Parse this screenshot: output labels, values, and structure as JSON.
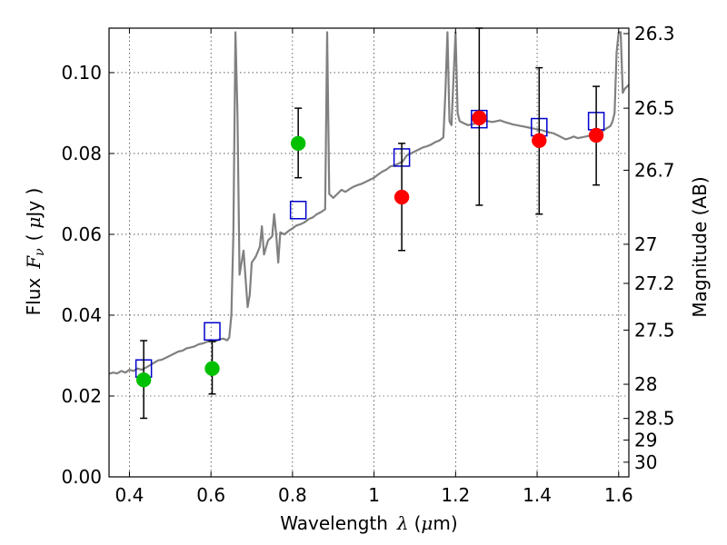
{
  "chart_data": {
    "type": "scatter",
    "title": "",
    "xlabel": {
      "prefix": "Wavelength",
      "symbol": "λ",
      "unit_open": "(",
      "unit_symbol": "μ",
      "unit": "m)"
    },
    "ylabel": {
      "prefix": "Flux",
      "symbol": "F",
      "subscript": "ν",
      "unit_open": "(",
      "unit_symbol": "μ",
      "unit": "Jy )"
    },
    "y2label": "Magnitude (AB)",
    "xlim": [
      0.35,
      1.625
    ],
    "ylim": [
      0.0,
      0.111
    ],
    "grid": true,
    "xticks": [
      {
        "value": 0.4,
        "label": "0.4"
      },
      {
        "value": 0.6,
        "label": "0.6"
      },
      {
        "value": 0.8,
        "label": "0.8"
      },
      {
        "value": 1.0,
        "label": "1"
      },
      {
        "value": 1.2,
        "label": "1.2"
      },
      {
        "value": 1.4,
        "label": "1.4"
      },
      {
        "value": 1.6,
        "label": "1.6"
      }
    ],
    "yticks": [
      {
        "value": 0.0,
        "label": "0.00"
      },
      {
        "value": 0.02,
        "label": "0.02"
      },
      {
        "value": 0.04,
        "label": "0.04"
      },
      {
        "value": 0.06,
        "label": "0.06"
      },
      {
        "value": 0.08,
        "label": "0.08"
      },
      {
        "value": 0.1,
        "label": "0.10"
      }
    ],
    "y2ticks": [
      {
        "mag": 26.3,
        "label": "26.3"
      },
      {
        "mag": 26.5,
        "label": "26.5"
      },
      {
        "mag": 26.7,
        "label": "26.7"
      },
      {
        "mag": 27.0,
        "label": "27"
      },
      {
        "mag": 27.2,
        "label": "27.2"
      },
      {
        "mag": 27.5,
        "label": "27.5"
      },
      {
        "mag": 28.0,
        "label": "28"
      },
      {
        "mag": 28.5,
        "label": "28.5"
      },
      {
        "mag": 29.0,
        "label": "29"
      },
      {
        "mag": 30.0,
        "label": "30"
      }
    ],
    "colors": {
      "spectrum": "#808080",
      "model_box": "#0000cc",
      "green_points": "#00c000",
      "red_points": "#ff0000",
      "errorbar": "#000000"
    },
    "spectrum": [
      [
        0.35,
        0.0255
      ],
      [
        0.36,
        0.0258
      ],
      [
        0.37,
        0.0256
      ],
      [
        0.38,
        0.0262
      ],
      [
        0.39,
        0.0258
      ],
      [
        0.4,
        0.0265
      ],
      [
        0.41,
        0.0262
      ],
      [
        0.42,
        0.0268
      ],
      [
        0.43,
        0.0265
      ],
      [
        0.44,
        0.027
      ],
      [
        0.45,
        0.0276
      ],
      [
        0.46,
        0.0282
      ],
      [
        0.47,
        0.0288
      ],
      [
        0.48,
        0.029
      ],
      [
        0.49,
        0.0295
      ],
      [
        0.5,
        0.03
      ],
      [
        0.51,
        0.0305
      ],
      [
        0.52,
        0.031
      ],
      [
        0.53,
        0.0312
      ],
      [
        0.54,
        0.0318
      ],
      [
        0.55,
        0.032
      ],
      [
        0.56,
        0.0323
      ],
      [
        0.57,
        0.0328
      ],
      [
        0.58,
        0.033
      ],
      [
        0.59,
        0.0334
      ],
      [
        0.6,
        0.0338
      ],
      [
        0.61,
        0.0335
      ],
      [
        0.62,
        0.034
      ],
      [
        0.63,
        0.0342
      ],
      [
        0.64,
        0.0338
      ],
      [
        0.645,
        0.0345
      ],
      [
        0.65,
        0.04
      ],
      [
        0.655,
        0.06
      ],
      [
        0.66,
        0.11
      ],
      [
        0.665,
        0.09
      ],
      [
        0.67,
        0.05
      ],
      [
        0.68,
        0.056
      ],
      [
        0.69,
        0.042
      ],
      [
        0.695,
        0.045
      ],
      [
        0.7,
        0.053
      ],
      [
        0.71,
        0.0545
      ],
      [
        0.72,
        0.057
      ],
      [
        0.725,
        0.062
      ],
      [
        0.73,
        0.055
      ],
      [
        0.74,
        0.0585
      ],
      [
        0.75,
        0.0595
      ],
      [
        0.755,
        0.065
      ],
      [
        0.76,
        0.06
      ],
      [
        0.765,
        0.053
      ],
      [
        0.77,
        0.0605
      ],
      [
        0.78,
        0.06
      ],
      [
        0.79,
        0.0608
      ],
      [
        0.8,
        0.0615
      ],
      [
        0.81,
        0.0622
      ],
      [
        0.82,
        0.0625
      ],
      [
        0.83,
        0.063
      ],
      [
        0.84,
        0.0638
      ],
      [
        0.85,
        0.0642
      ],
      [
        0.86,
        0.065
      ],
      [
        0.87,
        0.0655
      ],
      [
        0.88,
        0.0662
      ],
      [
        0.885,
        0.11
      ],
      [
        0.89,
        0.07
      ],
      [
        0.9,
        0.069
      ],
      [
        0.91,
        0.07
      ],
      [
        0.92,
        0.071
      ],
      [
        0.93,
        0.0705
      ],
      [
        0.94,
        0.0712
      ],
      [
        0.95,
        0.0718
      ],
      [
        0.96,
        0.0722
      ],
      [
        0.97,
        0.0725
      ],
      [
        0.98,
        0.073
      ],
      [
        0.99,
        0.0735
      ],
      [
        1.0,
        0.074
      ],
      [
        1.01,
        0.0748
      ],
      [
        1.02,
        0.0755
      ],
      [
        1.03,
        0.076
      ],
      [
        1.04,
        0.0768
      ],
      [
        1.05,
        0.077
      ],
      [
        1.06,
        0.0775
      ],
      [
        1.07,
        0.078
      ],
      [
        1.08,
        0.0795
      ],
      [
        1.09,
        0.08
      ],
      [
        1.1,
        0.0805
      ],
      [
        1.11,
        0.081
      ],
      [
        1.12,
        0.0815
      ],
      [
        1.13,
        0.0818
      ],
      [
        1.14,
        0.0822
      ],
      [
        1.15,
        0.0828
      ],
      [
        1.16,
        0.0832
      ],
      [
        1.17,
        0.084
      ],
      [
        1.175,
        0.095
      ],
      [
        1.18,
        0.11
      ],
      [
        1.185,
        0.088
      ],
      [
        1.19,
        0.087
      ],
      [
        1.2,
        0.11
      ],
      [
        1.205,
        0.09
      ],
      [
        1.21,
        0.088
      ],
      [
        1.22,
        0.0875
      ],
      [
        1.23,
        0.087
      ],
      [
        1.24,
        0.0872
      ],
      [
        1.25,
        0.0875
      ],
      [
        1.26,
        0.0878
      ],
      [
        1.27,
        0.088
      ],
      [
        1.28,
        0.088
      ],
      [
        1.29,
        0.0878
      ],
      [
        1.3,
        0.088
      ],
      [
        1.31,
        0.0882
      ],
      [
        1.32,
        0.0878
      ],
      [
        1.33,
        0.0875
      ],
      [
        1.34,
        0.0872
      ],
      [
        1.35,
        0.087
      ],
      [
        1.36,
        0.0868
      ],
      [
        1.37,
        0.0866
      ],
      [
        1.38,
        0.0864
      ],
      [
        1.39,
        0.0862
      ],
      [
        1.4,
        0.086
      ],
      [
        1.41,
        0.0858
      ],
      [
        1.42,
        0.0855
      ],
      [
        1.43,
        0.0852
      ],
      [
        1.44,
        0.085
      ],
      [
        1.45,
        0.0845
      ],
      [
        1.46,
        0.084
      ],
      [
        1.47,
        0.0835
      ],
      [
        1.48,
        0.0838
      ],
      [
        1.49,
        0.0842
      ],
      [
        1.5,
        0.0838
      ],
      [
        1.51,
        0.084
      ],
      [
        1.52,
        0.0842
      ],
      [
        1.53,
        0.0845
      ],
      [
        1.54,
        0.0848
      ],
      [
        1.55,
        0.085
      ],
      [
        1.56,
        0.0855
      ],
      [
        1.57,
        0.0862
      ],
      [
        1.58,
        0.0868
      ],
      [
        1.585,
        0.088
      ],
      [
        1.59,
        0.09
      ],
      [
        1.595,
        0.105
      ],
      [
        1.6,
        0.11
      ],
      [
        1.605,
        0.11
      ],
      [
        1.61,
        0.095
      ],
      [
        1.615,
        0.096
      ],
      [
        1.62,
        0.0965
      ],
      [
        1.625,
        0.097
      ]
    ],
    "model_points": [
      {
        "x": 0.435,
        "y": 0.0268
      },
      {
        "x": 0.603,
        "y": 0.036
      },
      {
        "x": 0.814,
        "y": 0.066
      },
      {
        "x": 1.068,
        "y": 0.079
      },
      {
        "x": 1.258,
        "y": 0.0885
      },
      {
        "x": 1.405,
        "y": 0.0865
      },
      {
        "x": 1.545,
        "y": 0.088
      }
    ],
    "green_points": [
      {
        "x": 0.435,
        "y": 0.024,
        "yerr_low": 0.0145,
        "yerr_high": 0.0337
      },
      {
        "x": 0.603,
        "y": 0.0268,
        "yerr_low": 0.0205,
        "yerr_high": 0.0335
      },
      {
        "x": 0.814,
        "y": 0.0825,
        "yerr_low": 0.074,
        "yerr_high": 0.0912
      }
    ],
    "red_points": [
      {
        "x": 1.068,
        "y": 0.0692,
        "yerr_low": 0.056,
        "yerr_high": 0.0825
      },
      {
        "x": 1.258,
        "y": 0.0888,
        "yerr_low": 0.0672,
        "yerr_high": 0.111
      },
      {
        "x": 1.405,
        "y": 0.0832,
        "yerr_low": 0.065,
        "yerr_high": 0.1012
      },
      {
        "x": 1.545,
        "y": 0.0845,
        "yerr_low": 0.0722,
        "yerr_high": 0.0966
      }
    ]
  }
}
